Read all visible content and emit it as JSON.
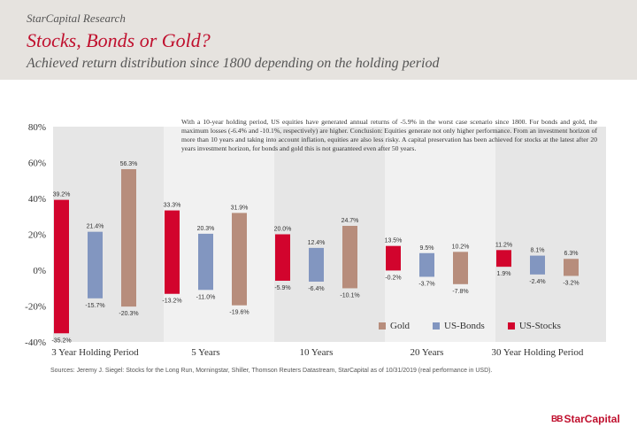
{
  "header": {
    "brand": "StarCapital Research",
    "title": "Stocks, Bonds or Gold?",
    "subtitle": "Achieved return distribution since 1800 depending on the holding period"
  },
  "note": "With a 10-year holding period, US equities have generated annual returns of -5.9% in the worst case scenario since 1800. For bonds and gold, the maximum losses (-6.4% and -10.1%, respectively) are higher. Conclusion: Equities generate not only higher performance. From an investment horizon of more than 10 years and taking into account inflation, equities are also less risky. A capital preservation has been achieved for stocks at the latest after 20 years investment horizon, for bonds and gold this is not guaranteed even after 50 years.",
  "source": "Sources: Jeremy J. Siegel: Stocks for the Long Run, Morningstar, Shiller, Thomson Reuters Datastream, StarCapital as of 10/31/2019 (real performance in USD).",
  "logo": {
    "mark": "BB",
    "text": "StarCapital"
  },
  "colors": {
    "stocks": "#d2042d",
    "bonds": "#8296c0",
    "gold": "#b78d7c",
    "band_dark": "#e6e6e6",
    "band_light": "#f1f1f1",
    "title": "#c0102e"
  },
  "chart_data": {
    "type": "bar",
    "subtype": "floating-range",
    "categories": [
      "3 Year Holding Period",
      "5 Years",
      "10 Years",
      "20 Years",
      "30 Year Holding Period"
    ],
    "series": [
      {
        "name": "US-Stocks",
        "max": [
          39.2,
          33.3,
          20.0,
          13.5,
          11.2
        ],
        "min": [
          -35.2,
          -13.2,
          -5.9,
          -0.2,
          1.9
        ],
        "max_labels": [
          "39.2%",
          "33.3%",
          "20.0%",
          "13.5%",
          "11.2%"
        ],
        "min_labels": [
          "-35.2%",
          "-13.2%",
          "-5.9%",
          "-0.2%",
          "1.9%"
        ]
      },
      {
        "name": "US-Bonds",
        "max": [
          21.4,
          20.3,
          12.4,
          9.5,
          8.1
        ],
        "min": [
          -15.7,
          -11.0,
          -6.4,
          -3.7,
          -2.4
        ],
        "max_labels": [
          "21.4%",
          "20.3%",
          "12.4%",
          "9.5%",
          "8.1%"
        ],
        "min_labels": [
          "-15.7%",
          "-11.0%",
          "-6.4%",
          "-3.7%",
          "-2.4%"
        ]
      },
      {
        "name": "Gold",
        "max": [
          56.3,
          31.9,
          24.7,
          10.2,
          6.3
        ],
        "min": [
          -20.3,
          -19.6,
          -10.1,
          -7.8,
          -3.2
        ],
        "max_labels": [
          "56.3%",
          "31.9%",
          "24.7%",
          "10.2%",
          "6.3%"
        ],
        "min_labels": [
          "-20.3%",
          "-19.6%",
          "-10.1%",
          "-7.8%",
          "-3.2%"
        ]
      }
    ],
    "legend": [
      "Gold",
      "US-Bonds",
      "US-Stocks"
    ],
    "legend_position": "bottom-right",
    "y_ticks": [
      "80%",
      "60%",
      "40%",
      "20%",
      "0%",
      "-20%",
      "-40%"
    ],
    "ylim": [
      -40,
      80
    ],
    "grid": false
  }
}
